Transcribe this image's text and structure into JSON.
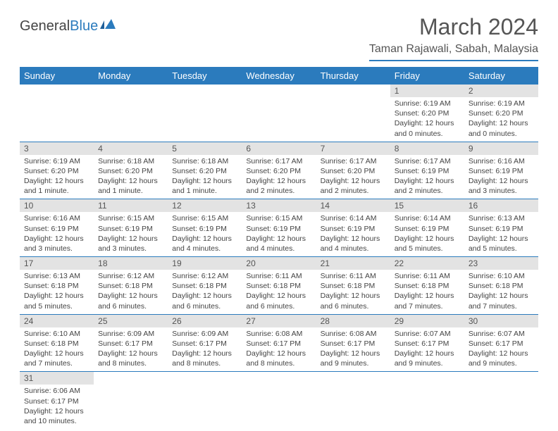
{
  "brand": {
    "part1": "General",
    "part2": "Blue"
  },
  "title": "March 2024",
  "location": "Taman Rajawali, Sabah, Malaysia",
  "colors": {
    "header_bg": "#2b7bbd",
    "header_text": "#ffffff",
    "daynum_bg": "#e3e3e3",
    "text": "#444444",
    "rule": "#2b7bbd"
  },
  "dayHeaders": [
    "Sunday",
    "Monday",
    "Tuesday",
    "Wednesday",
    "Thursday",
    "Friday",
    "Saturday"
  ],
  "weeks": [
    [
      null,
      null,
      null,
      null,
      null,
      {
        "n": "1",
        "sunrise": "6:19 AM",
        "sunset": "6:20 PM",
        "daylight": "12 hours and 0 minutes."
      },
      {
        "n": "2",
        "sunrise": "6:19 AM",
        "sunset": "6:20 PM",
        "daylight": "12 hours and 0 minutes."
      }
    ],
    [
      {
        "n": "3",
        "sunrise": "6:19 AM",
        "sunset": "6:20 PM",
        "daylight": "12 hours and 1 minute."
      },
      {
        "n": "4",
        "sunrise": "6:18 AM",
        "sunset": "6:20 PM",
        "daylight": "12 hours and 1 minute."
      },
      {
        "n": "5",
        "sunrise": "6:18 AM",
        "sunset": "6:20 PM",
        "daylight": "12 hours and 1 minute."
      },
      {
        "n": "6",
        "sunrise": "6:17 AM",
        "sunset": "6:20 PM",
        "daylight": "12 hours and 2 minutes."
      },
      {
        "n": "7",
        "sunrise": "6:17 AM",
        "sunset": "6:20 PM",
        "daylight": "12 hours and 2 minutes."
      },
      {
        "n": "8",
        "sunrise": "6:17 AM",
        "sunset": "6:19 PM",
        "daylight": "12 hours and 2 minutes."
      },
      {
        "n": "9",
        "sunrise": "6:16 AM",
        "sunset": "6:19 PM",
        "daylight": "12 hours and 3 minutes."
      }
    ],
    [
      {
        "n": "10",
        "sunrise": "6:16 AM",
        "sunset": "6:19 PM",
        "daylight": "12 hours and 3 minutes."
      },
      {
        "n": "11",
        "sunrise": "6:15 AM",
        "sunset": "6:19 PM",
        "daylight": "12 hours and 3 minutes."
      },
      {
        "n": "12",
        "sunrise": "6:15 AM",
        "sunset": "6:19 PM",
        "daylight": "12 hours and 4 minutes."
      },
      {
        "n": "13",
        "sunrise": "6:15 AM",
        "sunset": "6:19 PM",
        "daylight": "12 hours and 4 minutes."
      },
      {
        "n": "14",
        "sunrise": "6:14 AM",
        "sunset": "6:19 PM",
        "daylight": "12 hours and 4 minutes."
      },
      {
        "n": "15",
        "sunrise": "6:14 AM",
        "sunset": "6:19 PM",
        "daylight": "12 hours and 5 minutes."
      },
      {
        "n": "16",
        "sunrise": "6:13 AM",
        "sunset": "6:19 PM",
        "daylight": "12 hours and 5 minutes."
      }
    ],
    [
      {
        "n": "17",
        "sunrise": "6:13 AM",
        "sunset": "6:18 PM",
        "daylight": "12 hours and 5 minutes."
      },
      {
        "n": "18",
        "sunrise": "6:12 AM",
        "sunset": "6:18 PM",
        "daylight": "12 hours and 6 minutes."
      },
      {
        "n": "19",
        "sunrise": "6:12 AM",
        "sunset": "6:18 PM",
        "daylight": "12 hours and 6 minutes."
      },
      {
        "n": "20",
        "sunrise": "6:11 AM",
        "sunset": "6:18 PM",
        "daylight": "12 hours and 6 minutes."
      },
      {
        "n": "21",
        "sunrise": "6:11 AM",
        "sunset": "6:18 PM",
        "daylight": "12 hours and 6 minutes."
      },
      {
        "n": "22",
        "sunrise": "6:11 AM",
        "sunset": "6:18 PM",
        "daylight": "12 hours and 7 minutes."
      },
      {
        "n": "23",
        "sunrise": "6:10 AM",
        "sunset": "6:18 PM",
        "daylight": "12 hours and 7 minutes."
      }
    ],
    [
      {
        "n": "24",
        "sunrise": "6:10 AM",
        "sunset": "6:18 PM",
        "daylight": "12 hours and 7 minutes."
      },
      {
        "n": "25",
        "sunrise": "6:09 AM",
        "sunset": "6:17 PM",
        "daylight": "12 hours and 8 minutes."
      },
      {
        "n": "26",
        "sunrise": "6:09 AM",
        "sunset": "6:17 PM",
        "daylight": "12 hours and 8 minutes."
      },
      {
        "n": "27",
        "sunrise": "6:08 AM",
        "sunset": "6:17 PM",
        "daylight": "12 hours and 8 minutes."
      },
      {
        "n": "28",
        "sunrise": "6:08 AM",
        "sunset": "6:17 PM",
        "daylight": "12 hours and 9 minutes."
      },
      {
        "n": "29",
        "sunrise": "6:07 AM",
        "sunset": "6:17 PM",
        "daylight": "12 hours and 9 minutes."
      },
      {
        "n": "30",
        "sunrise": "6:07 AM",
        "sunset": "6:17 PM",
        "daylight": "12 hours and 9 minutes."
      }
    ],
    [
      {
        "n": "31",
        "sunrise": "6:06 AM",
        "sunset": "6:17 PM",
        "daylight": "12 hours and 10 minutes."
      },
      null,
      null,
      null,
      null,
      null,
      null
    ]
  ],
  "labels": {
    "sunrise": "Sunrise: ",
    "sunset": "Sunset: ",
    "daylight": "Daylight: "
  }
}
